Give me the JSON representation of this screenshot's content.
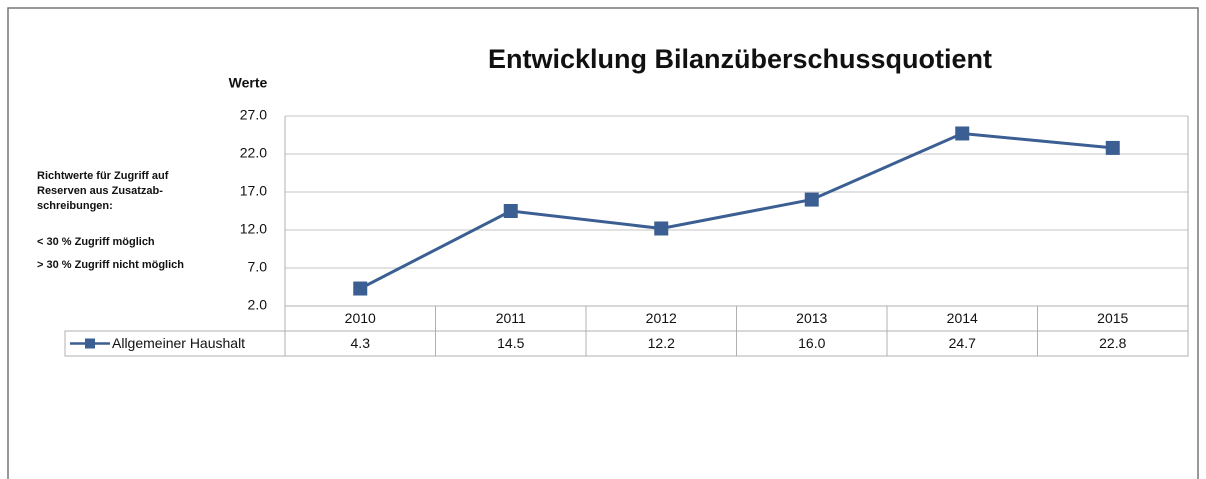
{
  "chart_data": {
    "type": "line",
    "title": "Entwicklung Bilanzüberschussquotient",
    "y_label": "Werte",
    "notes": [
      "Richtwerte für Zugriff auf",
      "Reserven aus Zusatzab-",
      "schreibungen:",
      "< 30 % Zugriff möglich",
      "> 30 % Zugriff nicht möglich"
    ],
    "categories": [
      "2010",
      "2011",
      "2012",
      "2013",
      "2014",
      "2015"
    ],
    "series": [
      {
        "name": "Allgemeiner Haushalt",
        "color": "#3b5f92",
        "values": [
          4.3,
          14.5,
          12.2,
          16.0,
          24.7,
          22.8
        ],
        "value_labels": [
          "4.3",
          "14.5",
          "12.2",
          "16.0",
          "24.7",
          "22.8"
        ]
      }
    ],
    "ylim": [
      2,
      27
    ],
    "yticks": [
      {
        "value": 2,
        "label": "2.0"
      },
      {
        "value": 7,
        "label": "7.0"
      },
      {
        "value": 12,
        "label": "12.0"
      },
      {
        "value": 17,
        "label": "17.0"
      },
      {
        "value": 22,
        "label": "22.0"
      },
      {
        "value": 27,
        "label": "27.0"
      }
    ],
    "grid": true
  }
}
